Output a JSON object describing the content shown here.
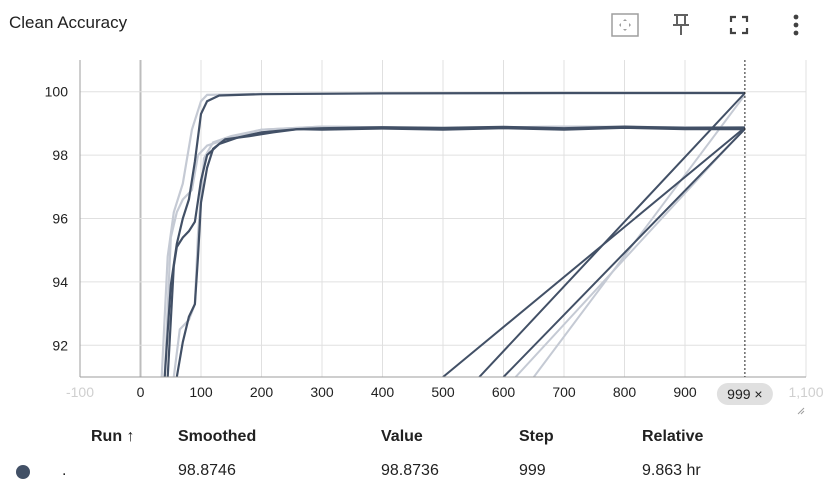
{
  "card": {
    "title": "Clean Accuracy",
    "toolbar": [
      {
        "name": "fit-domain-icon"
      },
      {
        "name": "pin-icon"
      },
      {
        "name": "fullscreen-icon"
      },
      {
        "name": "more-vert-icon"
      }
    ]
  },
  "chart_data": {
    "type": "line",
    "title": "Clean Accuracy",
    "xlabel": "",
    "ylabel": "",
    "xlim": [
      -100,
      1100
    ],
    "ylim": [
      91,
      101
    ],
    "x_ticks": [
      -100,
      0,
      100,
      200,
      300,
      400,
      500,
      600,
      700,
      800,
      900,
      1100
    ],
    "x_tick_labels": [
      "-100",
      "0",
      "100",
      "200",
      "300",
      "400",
      "500",
      "600",
      "700",
      "800",
      "900",
      "1,100"
    ],
    "y_ticks": [
      92,
      94,
      96,
      98,
      100
    ],
    "grid": true,
    "hover_step_label": "999 ×",
    "colors": {
      "smoothed": "#425066",
      "raw": "#c5cad4",
      "grid": "#e0e0e0",
      "cursor": "#212121"
    },
    "series": [
      {
        "smoothed": [
          [
            40,
            91
          ],
          [
            50,
            93.9
          ],
          [
            60,
            95.2
          ],
          [
            70,
            96
          ],
          [
            80,
            96.6
          ],
          [
            90,
            97.8
          ],
          [
            100,
            99.3
          ],
          [
            110,
            99.7
          ],
          [
            130,
            99.88
          ],
          [
            200,
            99.92
          ],
          [
            400,
            99.95
          ],
          [
            700,
            99.96
          ],
          [
            999,
            99.96
          ]
        ],
        "raw": [
          [
            35,
            91
          ],
          [
            45,
            94.8
          ],
          [
            55,
            96.2
          ],
          [
            70,
            97.1
          ],
          [
            85,
            98.8
          ],
          [
            100,
            99.7
          ],
          [
            110,
            99.9
          ],
          [
            200,
            99.93
          ],
          [
            600,
            99.95
          ],
          [
            999,
            99.96
          ]
        ],
        "wrap_back": [
          [
            999,
            99.96
          ],
          [
            560,
            91
          ]
        ]
      },
      {
        "smoothed": [
          [
            45,
            91
          ],
          [
            55,
            94.5
          ],
          [
            60,
            95.1
          ],
          [
            70,
            95.4
          ],
          [
            80,
            95.6
          ],
          [
            90,
            95.9
          ],
          [
            100,
            97.2
          ],
          [
            110,
            98
          ],
          [
            130,
            98.35
          ],
          [
            160,
            98.55
          ],
          [
            200,
            98.72
          ],
          [
            260,
            98.82
          ],
          [
            300,
            98.85
          ],
          [
            400,
            98.88
          ],
          [
            500,
            98.86
          ],
          [
            600,
            98.89
          ],
          [
            700,
            98.85
          ],
          [
            800,
            98.9
          ],
          [
            900,
            98.86
          ],
          [
            999,
            98.87
          ]
        ],
        "raw": [
          [
            40,
            91
          ],
          [
            50,
            95.4
          ],
          [
            60,
            96.2
          ],
          [
            70,
            96.6
          ],
          [
            85,
            96.9
          ],
          [
            95,
            98
          ],
          [
            110,
            98.3
          ],
          [
            150,
            98.55
          ],
          [
            200,
            98.8
          ],
          [
            300,
            98.9
          ],
          [
            500,
            98.85
          ],
          [
            700,
            98.9
          ],
          [
            999,
            98.87
          ]
        ],
        "wrap_back": [
          [
            999,
            98.87
          ],
          [
            500,
            91
          ]
        ]
      },
      {
        "smoothed": [
          [
            60,
            91
          ],
          [
            70,
            92.1
          ],
          [
            80,
            92.9
          ],
          [
            90,
            93.3
          ],
          [
            95,
            94.8
          ],
          [
            100,
            96.5
          ],
          [
            110,
            97.6
          ],
          [
            120,
            98.2
          ],
          [
            140,
            98.5
          ],
          [
            180,
            98.6
          ],
          [
            220,
            98.72
          ],
          [
            260,
            98.82
          ],
          [
            300,
            98.8
          ],
          [
            400,
            98.84
          ],
          [
            500,
            98.8
          ],
          [
            600,
            98.85
          ],
          [
            700,
            98.8
          ],
          [
            800,
            98.86
          ],
          [
            900,
            98.82
          ],
          [
            999,
            98.82
          ]
        ],
        "raw": [
          [
            55,
            91
          ],
          [
            65,
            92.5
          ],
          [
            80,
            92.8
          ],
          [
            90,
            93.3
          ],
          [
            95,
            95.5
          ],
          [
            105,
            97.9
          ],
          [
            120,
            98.4
          ],
          [
            150,
            98.6
          ],
          [
            200,
            98.8
          ],
          [
            300,
            98.9
          ],
          [
            500,
            98.85
          ],
          [
            700,
            98.9
          ],
          [
            999,
            98.85
          ]
        ],
        "wrap_back": [
          [
            999,
            98.82
          ],
          [
            600,
            91
          ]
        ]
      }
    ],
    "raw_wrap": [
      [
        [
          999,
          99.9
        ],
        [
          650,
          91
        ]
      ],
      [
        [
          999,
          98.85
        ],
        [
          620,
          91
        ]
      ]
    ]
  },
  "table": {
    "headers": {
      "run": "Run ↑",
      "smoothed": "Smoothed",
      "value": "Value",
      "step": "Step",
      "relative": "Relative"
    },
    "rows": [
      {
        "run": ".",
        "smoothed": "98.8746",
        "value": "98.8736",
        "step": "999",
        "relative": "9.863 hr"
      }
    ]
  }
}
